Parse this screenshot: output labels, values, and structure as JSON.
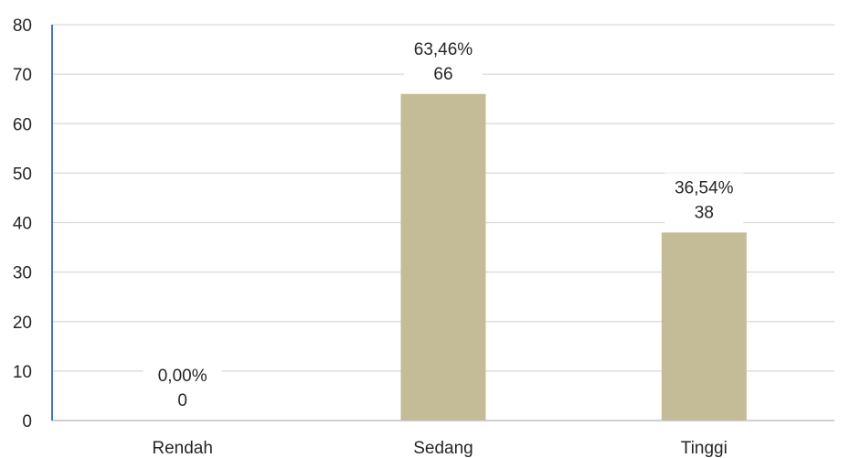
{
  "chart_data": {
    "type": "bar",
    "categories": [
      "Rendah",
      "Sedang",
      "Tinggi"
    ],
    "values": [
      0,
      66,
      38
    ],
    "percent_labels": [
      "0,00%",
      "63,46%",
      "36,54%"
    ],
    "value_labels": [
      "0",
      "66",
      "38"
    ],
    "title": "",
    "xlabel": "",
    "ylabel": "",
    "ylim": [
      0,
      80
    ],
    "yticks": [
      0,
      10,
      20,
      30,
      40,
      50,
      60,
      70,
      80
    ],
    "ytick_labels": [
      "0",
      "10",
      "20",
      "30",
      "40",
      "50",
      "60",
      "70",
      "80"
    ],
    "grid": true,
    "legend": "none",
    "colors": {
      "bar": "#C4BC96",
      "grid": "#D9D9D9",
      "y_axis": "#4472C4",
      "x_axis": "#BFBFBF",
      "text": "#262626"
    }
  }
}
